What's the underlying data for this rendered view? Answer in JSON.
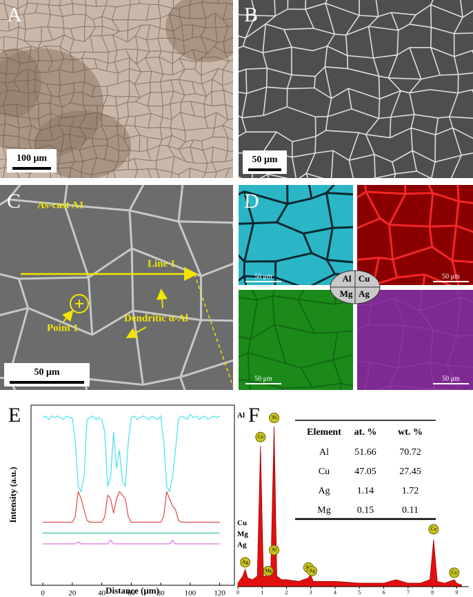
{
  "panels": [
    {
      "letter": "A",
      "scale_bar": "100 μm"
    },
    {
      "letter": "B",
      "scale_bar": "50 μm"
    },
    {
      "letter": "C",
      "scale_bar": "50 μm",
      "annotations": [
        "As-cast A1",
        "Line 1",
        "Point 1",
        "Dendritic α-Al"
      ]
    },
    {
      "letter": "D",
      "maps": [
        {
          "element": "Al",
          "scale_bar": "50 μm"
        },
        {
          "element": "Cu",
          "scale_bar": "50 μm"
        },
        {
          "element": "Mg",
          "scale_bar": "50 μm"
        },
        {
          "element": "Ag",
          "scale_bar": "50 μm"
        }
      ]
    },
    {
      "letter": "E"
    },
    {
      "letter": "F"
    }
  ],
  "chart_data": [
    {
      "type": "line",
      "xlabel": "Distance (μm)",
      "ylabel": "Intensity (a.u.)",
      "x": [
        0,
        2,
        4,
        6,
        8,
        10,
        12,
        14,
        16,
        18,
        20,
        22,
        24,
        26,
        28,
        30,
        32,
        34,
        36,
        38,
        40,
        42,
        44,
        46,
        48,
        50,
        52,
        54,
        56,
        58,
        60,
        62,
        64,
        66,
        68,
        70,
        72,
        74,
        76,
        78,
        80,
        82,
        84,
        86,
        88,
        90,
        92,
        94,
        96,
        98,
        100,
        102,
        104,
        106,
        108,
        110,
        112,
        114,
        116,
        118,
        120
      ],
      "xlim": [
        -8,
        130
      ],
      "xticks": [
        0,
        20,
        40,
        60,
        80,
        100,
        120
      ],
      "ylim": [
        0,
        100
      ],
      "series": [
        {
          "name": "Al",
          "color": "#3fe0f0",
          "values": [
            93,
            94,
            92,
            94,
            93,
            94,
            93,
            92,
            94,
            93,
            93,
            80,
            55,
            52,
            60,
            92,
            93,
            94,
            92,
            93,
            92,
            85,
            55,
            60,
            85,
            65,
            75,
            58,
            55,
            80,
            93,
            94,
            92,
            93,
            94,
            93,
            92,
            94,
            93,
            92,
            94,
            80,
            55,
            52,
            60,
            75,
            92,
            94,
            93,
            92,
            95,
            93,
            94,
            92,
            93,
            94,
            92,
            93,
            94,
            93,
            94
          ]
        },
        {
          "name": "Cu",
          "color": "#e04848",
          "values": [
            35,
            35,
            35,
            35,
            35,
            35,
            35,
            35,
            35,
            35,
            35,
            38,
            52,
            48,
            42,
            36,
            35,
            35,
            35,
            35,
            35,
            38,
            50,
            48,
            40,
            48,
            52,
            50,
            48,
            38,
            35,
            35,
            35,
            35,
            35,
            35,
            35,
            35,
            35,
            35,
            35,
            38,
            52,
            48,
            44,
            42,
            36,
            35,
            35,
            35,
            35,
            35,
            35,
            35,
            35,
            35,
            35,
            35,
            35,
            35,
            35
          ]
        },
        {
          "name": "Mg",
          "color": "#20c090",
          "values": [
            29,
            29,
            29,
            29,
            29,
            29,
            29,
            29,
            29,
            29,
            29,
            29,
            29,
            29,
            29,
            29,
            29,
            29,
            29,
            29,
            29,
            29,
            29,
            29,
            29,
            29,
            29,
            29,
            29,
            29,
            29,
            29,
            29,
            29,
            29,
            29,
            29,
            29,
            29,
            29,
            29,
            29,
            29,
            29,
            29,
            29,
            29,
            29,
            29,
            29,
            29,
            29,
            29,
            29,
            29,
            29,
            29,
            29,
            29,
            29,
            29
          ]
        },
        {
          "name": "Ag",
          "color": "#e070e0",
          "values": [
            23,
            23,
            23,
            23,
            23,
            23,
            23,
            23,
            23,
            23,
            23,
            23,
            24,
            23,
            23,
            23,
            23,
            23,
            23,
            23,
            23,
            23,
            23,
            25,
            23,
            23,
            23,
            23,
            23,
            23,
            23,
            23,
            23,
            23,
            23,
            23,
            23,
            23,
            23,
            23,
            23,
            23,
            23,
            23,
            25,
            23,
            23,
            23,
            23,
            23,
            23,
            23,
            23,
            23,
            23,
            23,
            23,
            23,
            23,
            23,
            23
          ]
        }
      ]
    },
    {
      "type": "area",
      "color": "#e01010",
      "xlim": [
        0,
        9.5
      ],
      "xticks": [
        0,
        1,
        2,
        3,
        4,
        5,
        6,
        7,
        8,
        9
      ],
      "ylim": [
        0,
        100
      ],
      "x": [
        0,
        0.2,
        0.3,
        0.4,
        0.6,
        0.8,
        0.93,
        1.05,
        1.2,
        1.25,
        1.35,
        1.49,
        1.6,
        1.8,
        2.0,
        2.5,
        2.9,
        2.98,
        3.1,
        3.5,
        4,
        5,
        6,
        6.5,
        7,
        7.5,
        7.9,
        8.05,
        8.2,
        8.5,
        8.9,
        9.0,
        9.2
      ],
      "values": [
        2,
        6,
        10,
        5,
        4,
        6,
        81,
        6,
        6,
        8,
        6,
        92,
        6,
        4,
        4,
        3,
        5,
        7,
        3,
        3,
        3,
        2,
        2,
        4,
        2,
        2,
        4,
        27,
        3,
        2,
        4,
        2,
        1
      ],
      "peak_labels": [
        {
          "label": "Ag",
          "x": 0.3,
          "y": 14
        },
        {
          "label": "Cu",
          "x": 0.93,
          "y": 86
        },
        {
          "label": "Mg",
          "x": 1.25,
          "y": 9
        },
        {
          "label": "Al",
          "x": 1.49,
          "y": 97
        },
        {
          "label": "Al",
          "x": 1.49,
          "y": 21
        },
        {
          "label": "Ag",
          "x": 2.9,
          "y": 11
        },
        {
          "label": "Ag",
          "x": 3.05,
          "y": 9
        },
        {
          "label": "Cu",
          "x": 8.05,
          "y": 33
        },
        {
          "label": "Cu",
          "x": 8.9,
          "y": 8
        }
      ],
      "table": {
        "header": [
          "Element",
          "at. %",
          "wt. %"
        ],
        "rows": [
          [
            "Al",
            51.66,
            70.72
          ],
          [
            "Cu",
            47.05,
            27.45
          ],
          [
            "Ag",
            1.14,
            1.72
          ],
          [
            "Mg",
            0.15,
            0.11
          ]
        ]
      }
    }
  ]
}
